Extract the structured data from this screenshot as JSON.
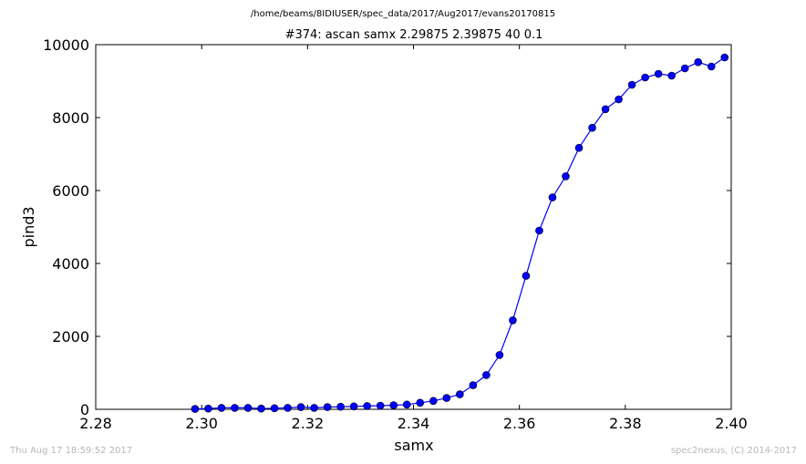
{
  "figure": {
    "path": "/home/beams/8IDIUSER/spec_data/2017/Aug2017/evans20170815",
    "timestamp": "Thu Aug 17 18:59:52 2017",
    "credit": "spec2nexus, (C) 2014-2017"
  },
  "chart_data": {
    "type": "line",
    "title": "#374: ascan  samx 2.29875 2.39875  40 0.1",
    "xlabel": "samx",
    "ylabel": "pind3",
    "xlim": [
      2.28,
      2.4
    ],
    "ylim": [
      0,
      10000
    ],
    "xticks": [
      "2.28",
      "2.30",
      "2.32",
      "2.34",
      "2.36",
      "2.38",
      "2.40"
    ],
    "yticks": [
      "0",
      "2000",
      "4000",
      "6000",
      "8000",
      "10000"
    ],
    "grid": false,
    "line_color": "#0000ff",
    "marker_color": "#0000ff",
    "series": [
      {
        "x": [
          2.29875,
          2.30125,
          2.30375,
          2.30625,
          2.30875,
          2.31125,
          2.31375,
          2.31625,
          2.31875,
          2.32125,
          2.32375,
          2.32625,
          2.32875,
          2.33125,
          2.33375,
          2.33625,
          2.33875,
          2.34125,
          2.34375,
          2.34625,
          2.34875,
          2.35125,
          2.35375,
          2.35625,
          2.35875,
          2.36125,
          2.36375,
          2.36625,
          2.36875,
          2.37125,
          2.37375,
          2.37625,
          2.37875,
          2.38125,
          2.38375,
          2.38625,
          2.38875,
          2.39125,
          2.39375,
          2.39625,
          2.39875
        ],
        "values": [
          10,
          20,
          40,
          40,
          40,
          20,
          30,
          40,
          60,
          40,
          60,
          70,
          80,
          90,
          100,
          110,
          130,
          180,
          230,
          310,
          410,
          660,
          940,
          1490,
          2440,
          3660,
          4900,
          5810,
          6390,
          7170,
          7720,
          8230,
          8500,
          8900,
          9100,
          9200,
          9150,
          9350,
          9520,
          9400,
          9650
        ]
      }
    ]
  }
}
